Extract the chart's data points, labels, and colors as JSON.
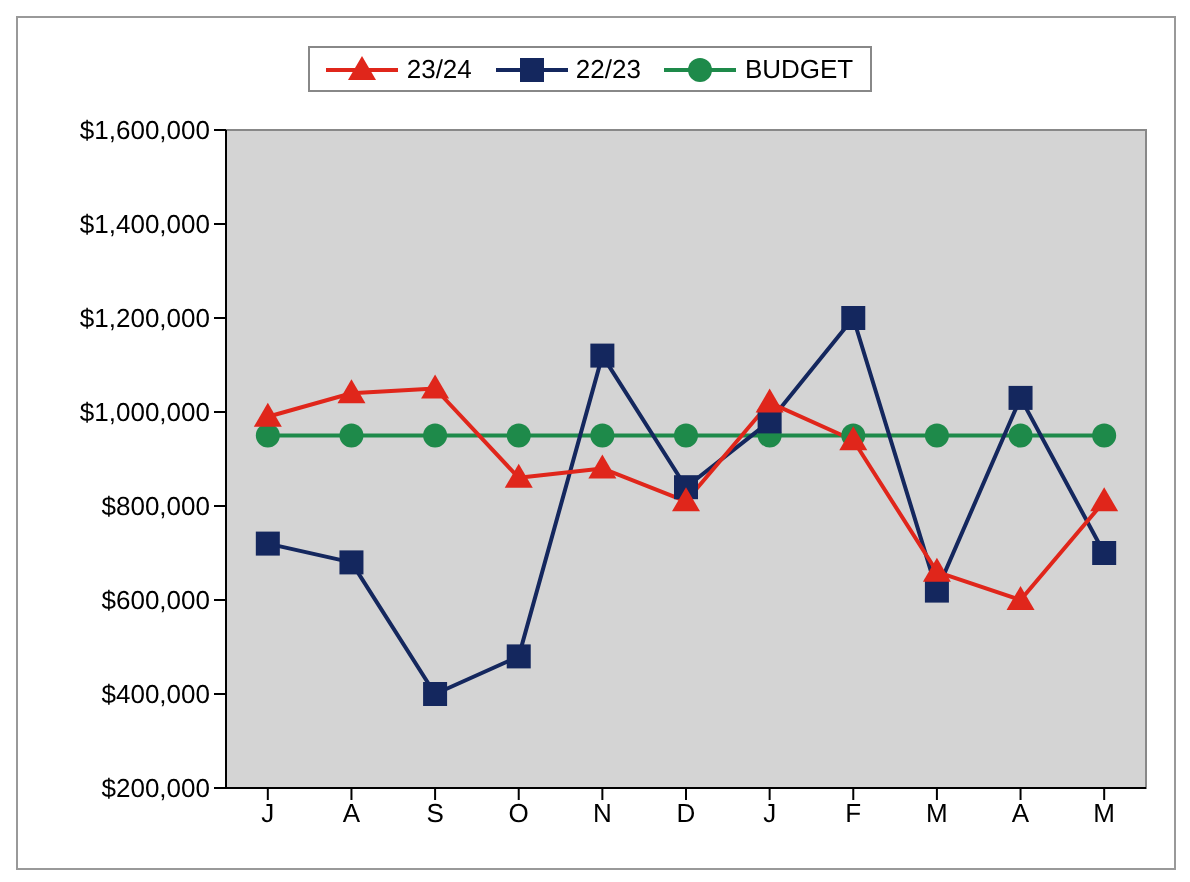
{
  "chart_data": {
    "type": "line",
    "categories": [
      "J",
      "A",
      "S",
      "O",
      "N",
      "D",
      "J",
      "F",
      "M",
      "A",
      "M"
    ],
    "series": [
      {
        "name": "23/24",
        "color": "#e0261b",
        "marker": "triangle",
        "values": [
          990000,
          1040000,
          1050000,
          860000,
          880000,
          810000,
          1020000,
          940000,
          660000,
          600000,
          810000
        ]
      },
      {
        "name": "22/23",
        "color": "#14275e",
        "marker": "square",
        "values": [
          720000,
          680000,
          400000,
          480000,
          1120000,
          840000,
          980000,
          1200000,
          620000,
          1030000,
          700000
        ]
      },
      {
        "name": "BUDGET",
        "color": "#1e8a4a",
        "marker": "circle",
        "values": [
          950000,
          950000,
          950000,
          950000,
          950000,
          950000,
          950000,
          950000,
          950000,
          950000,
          950000
        ]
      }
    ],
    "ylim": [
      200000,
      1600000
    ],
    "yticks": [
      {
        "value": 200000,
        "label": "$200,000"
      },
      {
        "value": 400000,
        "label": "$400,000"
      },
      {
        "value": 600000,
        "label": "$600,000"
      },
      {
        "value": 800000,
        "label": "$800,000"
      },
      {
        "value": 1000000,
        "label": "$1,000,000"
      },
      {
        "value": 1200000,
        "label": "$1,200,000"
      },
      {
        "value": 1400000,
        "label": "$1,400,000"
      },
      {
        "value": 1600000,
        "label": "$1,600,000"
      }
    ],
    "legend": "top"
  }
}
